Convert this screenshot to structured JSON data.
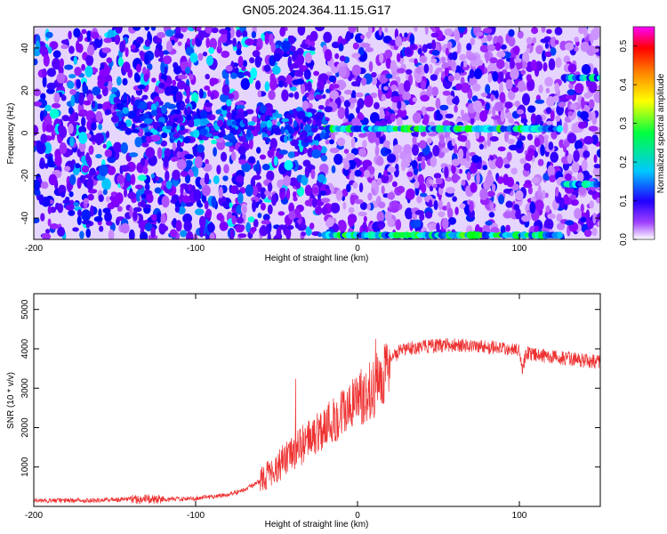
{
  "title": "GN05.2024.364.11.15.G17",
  "chart_data": [
    {
      "type": "heatmap",
      "xlabel": "Height of straight line (km)",
      "ylabel": "Frequency (Hz)",
      "xlim": [
        -200,
        150
      ],
      "ylim": [
        -50,
        50
      ],
      "xticks": [
        -200,
        -100,
        0,
        100
      ],
      "yticks": [
        -40,
        -20,
        0,
        20,
        40
      ],
      "colorbar": {
        "label": "Normalized spectral amplitude",
        "range": [
          0,
          0.55
        ],
        "ticks": [
          0,
          0.1,
          0.2,
          0.3,
          0.4,
          0.5
        ],
        "colors": [
          "#ffffff",
          "#8800ff",
          "#0000ff",
          "#00ffff",
          "#00ff00",
          "#ffff00",
          "#ff8800",
          "#ff0000",
          "#ff00ff"
        ]
      },
      "features": [
        {
          "kind": "line",
          "freq_hz": 2,
          "x_range": [
            -20,
            125
          ],
          "amplitude": 0.3
        },
        {
          "kind": "line",
          "freq_hz": -48,
          "x_range": [
            -20,
            125
          ],
          "amplitude": 0.3
        },
        {
          "kind": "line",
          "freq_hz": 26,
          "x_range": [
            128,
            150
          ],
          "amplitude": 0.25
        },
        {
          "kind": "line",
          "freq_hz": -24,
          "x_range": [
            128,
            150
          ],
          "amplitude": 0.25
        },
        {
          "kind": "diffuse",
          "freq_hz": 5,
          "x_range": [
            -150,
            -20
          ],
          "amplitude": 0.12
        }
      ]
    },
    {
      "type": "line",
      "xlabel": "Height of straight line (km)",
      "ylabel": "SNR (10 * v/v)",
      "xlim": [
        -200,
        150
      ],
      "ylim": [
        0,
        5400
      ],
      "xticks": [
        -200,
        -100,
        0,
        100
      ],
      "yticks": [
        1000,
        2000,
        3000,
        4000,
        5000
      ],
      "color": "#ee3030",
      "series": [
        {
          "x": [
            -200,
            -180,
            -160,
            -140,
            -120,
            -100,
            -80,
            -70,
            -60,
            -50,
            -40,
            -30,
            -20,
            -15,
            -10,
            -5,
            0,
            5,
            10,
            15,
            20,
            25,
            30,
            40,
            50,
            60,
            70,
            80,
            90,
            100,
            102,
            104,
            110,
            120,
            130,
            140,
            150
          ],
          "values": [
            150,
            150,
            160,
            190,
            180,
            200,
            300,
            420,
            650,
            1000,
            1350,
            1700,
            2050,
            2200,
            2350,
            2500,
            2700,
            2850,
            3000,
            3300,
            3700,
            3900,
            4000,
            4050,
            4080,
            4100,
            4080,
            4050,
            4000,
            3950,
            3500,
            3900,
            3850,
            3800,
            3750,
            3700,
            3680
          ]
        }
      ]
    }
  ]
}
